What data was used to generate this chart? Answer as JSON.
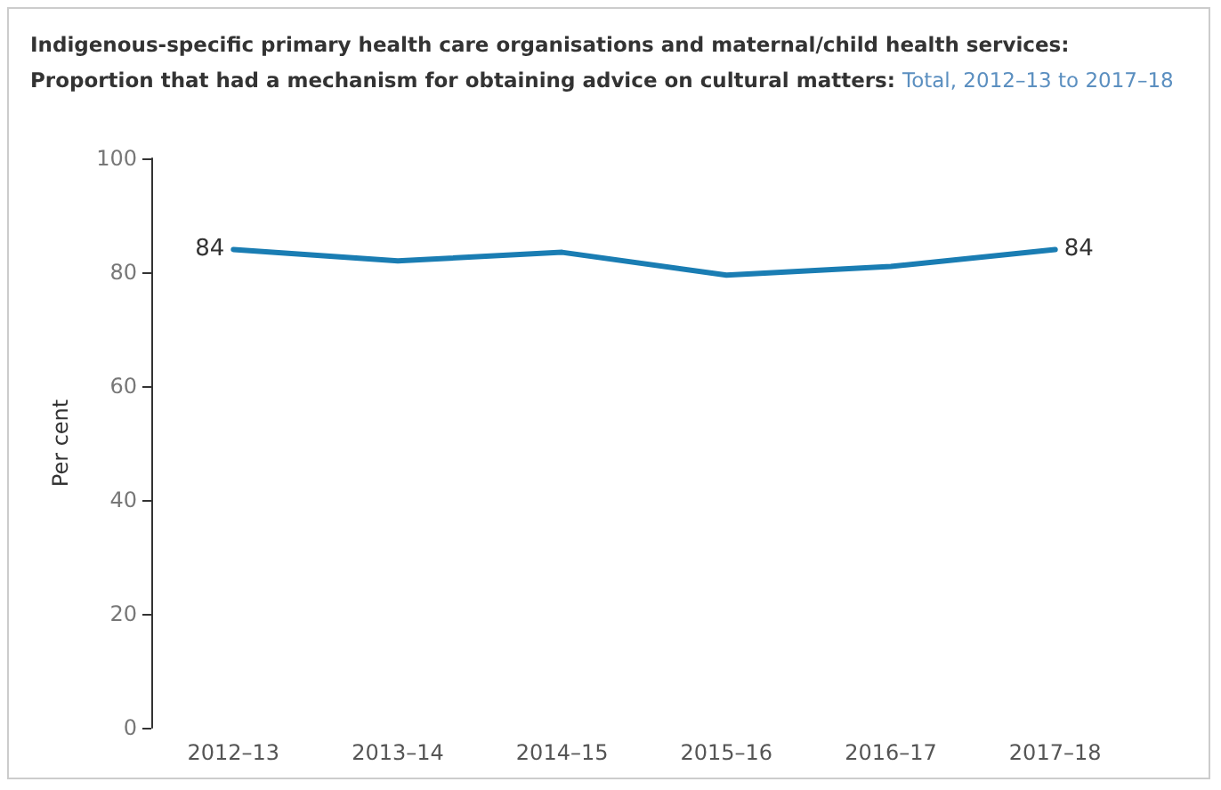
{
  "chart_data": {
    "type": "line",
    "title": "Indigenous-specific primary health care organisations and maternal/child health services: Proportion that had a mechanism for obtaining advice on cultural matters:",
    "subtitle": "Total, 2012–13 to 2017–18",
    "ylabel": "Per cent",
    "categories": [
      "2012–13",
      "2013–14",
      "2014–15",
      "2015–16",
      "2016–17",
      "2017–18"
    ],
    "series": [
      {
        "color": "#1a7db3",
        "values": [
          84,
          82,
          83.5,
          79.5,
          81,
          84
        ],
        "value_labels": [
          "84",
          null,
          null,
          null,
          null,
          "84"
        ]
      }
    ],
    "ylim": [
      0,
      100
    ],
    "yticks": [
      0,
      20,
      40,
      60,
      80,
      100
    ],
    "grid": false,
    "marker": "none",
    "line_style": "solid"
  }
}
